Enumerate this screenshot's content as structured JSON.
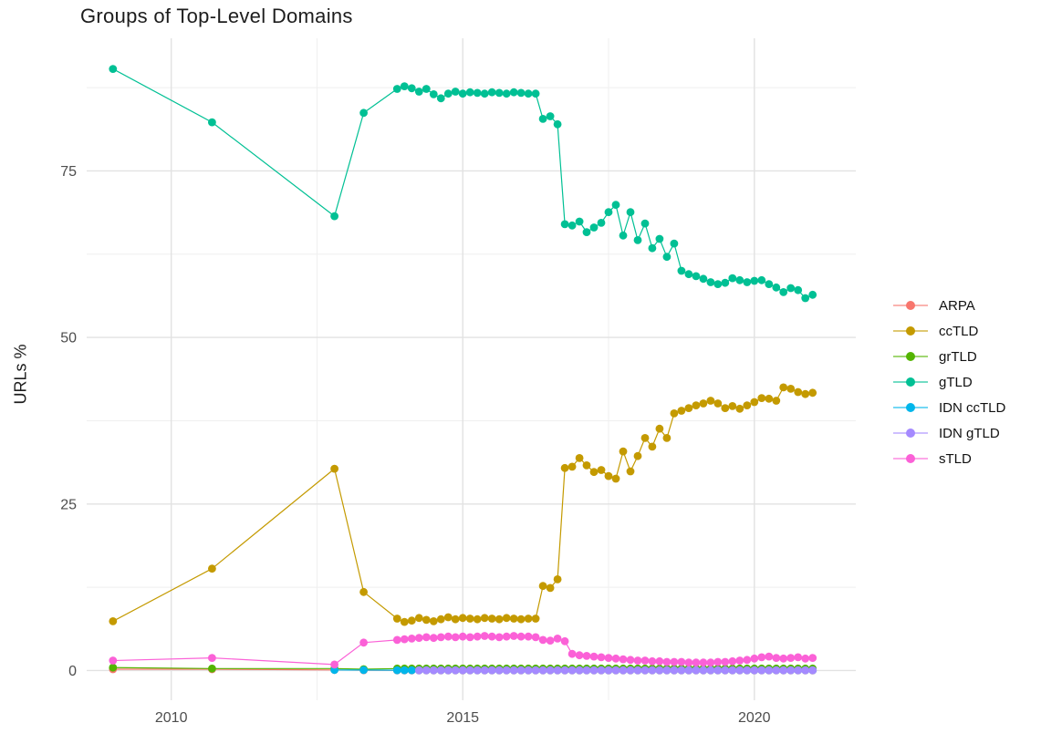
{
  "chart_data": {
    "type": "scatter",
    "title": "Groups of Top-Level Domains",
    "xlabel": "",
    "ylabel": "URLs %",
    "legend_position": "right",
    "grid": true,
    "background": "#ffffff",
    "grid_major_color": "#e2e2e2",
    "grid_minor_color": "#efefef",
    "tick_label_color": "#4d4d4d",
    "xticks": [
      2010,
      2015,
      2020
    ],
    "xtick_labels": [
      "2010",
      "2015",
      "2020"
    ],
    "yticks": [
      0,
      25,
      50,
      75
    ],
    "ytick_labels": [
      "0",
      "25",
      "50",
      "75"
    ],
    "x_minor": [
      2012.5,
      2017.5
    ],
    "y_minor": [
      12.5,
      37.5,
      62.5,
      87.5
    ],
    "xlim": [
      2008.55,
      2021.74
    ],
    "ylim": [
      -4.45,
      94.9
    ],
    "x": [
      2009,
      2010.7,
      2012.8,
      2013.3,
      2013.875,
      2014,
      2014.125,
      2014.25,
      2014.375,
      2014.5,
      2014.625,
      2014.75,
      2014.875,
      2015,
      2015.125,
      2015.25,
      2015.375,
      2015.5,
      2015.625,
      2015.75,
      2015.875,
      2016,
      2016.125,
      2016.25,
      2016.375,
      2016.5,
      2016.625,
      2016.75,
      2016.875,
      2017,
      2017.125,
      2017.25,
      2017.375,
      2017.5,
      2017.625,
      2017.75,
      2017.875,
      2018,
      2018.125,
      2018.25,
      2018.375,
      2018.5,
      2018.625,
      2018.75,
      2018.875,
      2019,
      2019.125,
      2019.25,
      2019.375,
      2019.5,
      2019.625,
      2019.75,
      2019.875,
      2020,
      2020.125,
      2020.25,
      2020.375,
      2020.5,
      2020.625,
      2020.75,
      2020.875,
      2021
    ],
    "series": [
      {
        "name": "ARPA",
        "color": "#F8766D",
        "values": [
          0.2,
          0.2,
          0.1,
          0.05,
          0.02,
          0.02,
          0.02,
          0.02,
          0.02,
          0.02,
          0.02,
          0.02,
          0.02,
          0.02,
          0.02,
          0.02,
          0.02,
          0.02,
          0.02,
          0.02,
          0.02,
          0.02,
          0.02,
          0.02,
          0.02,
          0.02,
          0.02,
          0.02,
          0.02,
          0.02,
          0.02,
          0.02,
          0.02,
          0.02,
          0.02,
          0.02,
          0.02,
          0.02,
          0.02,
          0.02,
          0.02,
          0.02,
          0.02,
          0.02,
          0.02,
          0.02,
          0.02,
          0.02,
          0.02,
          0.02,
          0.02,
          0.02,
          0.02,
          0.02,
          0.02,
          0.02,
          0.02,
          0.02,
          0.02,
          0.02,
          0.02,
          0.02
        ]
      },
      {
        "name": "ccTLD",
        "color": "#C49A00",
        "values": [
          7.4,
          15.3,
          30.3,
          11.8,
          7.8,
          7.3,
          7.5,
          7.9,
          7.6,
          7.4,
          7.7,
          8,
          7.7,
          7.9,
          7.8,
          7.7,
          7.9,
          7.8,
          7.7,
          7.9,
          7.8,
          7.7,
          7.8,
          7.8,
          12.7,
          12.4,
          13.7,
          30.4,
          30.6,
          31.9,
          30.8,
          29.8,
          30.1,
          29.2,
          28.8,
          32.9,
          29.9,
          32.2,
          34.9,
          33.6,
          36.3,
          34.9,
          38.6,
          39,
          39.4,
          39.8,
          40.1,
          40.5,
          40.1,
          39.4,
          39.7,
          39.3,
          39.8,
          40.3,
          40.9,
          40.8,
          40.5,
          42.5,
          42.3,
          41.8,
          41.5,
          41.7
        ]
      },
      {
        "name": "grTLD",
        "color": "#53B400",
        "values": [
          0.45,
          0.3,
          0.3,
          0.2,
          0.3,
          0.3,
          0.3,
          0.3,
          0.3,
          0.3,
          0.3,
          0.3,
          0.3,
          0.3,
          0.3,
          0.3,
          0.3,
          0.3,
          0.3,
          0.3,
          0.3,
          0.3,
          0.3,
          0.3,
          0.3,
          0.3,
          0.3,
          0.3,
          0.3,
          0.3,
          0.3,
          0.3,
          0.3,
          0.3,
          0.3,
          0.3,
          0.3,
          0.3,
          0.3,
          0.3,
          0.3,
          0.3,
          0.3,
          0.3,
          0.3,
          0.3,
          0.3,
          0.3,
          0.3,
          0.3,
          0.3,
          0.3,
          0.3,
          0.3,
          0.3,
          0.3,
          0.3,
          0.3,
          0.3,
          0.3,
          0.3,
          0.3
        ]
      },
      {
        "name": "gTLD",
        "color": "#00C094",
        "values": [
          90.3,
          82.3,
          68.2,
          83.7,
          87.3,
          87.7,
          87.4,
          86.9,
          87.3,
          86.5,
          85.9,
          86.6,
          86.9,
          86.6,
          86.8,
          86.7,
          86.6,
          86.8,
          86.7,
          86.6,
          86.8,
          86.7,
          86.6,
          86.6,
          82.8,
          83.2,
          82,
          67,
          66.8,
          67.4,
          65.8,
          66.5,
          67.2,
          68.8,
          69.9,
          65.3,
          68.8,
          64.6,
          67.1,
          63.4,
          64.8,
          62.1,
          64.1,
          60,
          59.5,
          59.2,
          58.8,
          58.3,
          58,
          58.2,
          58.9,
          58.6,
          58.3,
          58.5,
          58.6,
          58,
          57.5,
          56.8,
          57.4,
          57.1,
          55.9,
          56.4
        ]
      },
      {
        "name": "IDN ccTLD",
        "color": "#00B6EB",
        "values": [
          null,
          null,
          0.1,
          0.08,
          0.05,
          0.05,
          0.05,
          0.05,
          0.05,
          0.05,
          0.05,
          0.05,
          0.05,
          0.05,
          0.05,
          0.05,
          0.05,
          0.05,
          0.05,
          0.05,
          0.05,
          0.05,
          0.05,
          0.05,
          0.05,
          0.05,
          0.05,
          0.05,
          0.05,
          0.05,
          0.05,
          0.05,
          0.05,
          0.05,
          0.05,
          0.05,
          0.05,
          0.05,
          0.05,
          0.05,
          0.05,
          0.05,
          0.05,
          0.05,
          0.05,
          0.05,
          0.05,
          0.05,
          0.05,
          0.05,
          0.05,
          0.05,
          0.05,
          0.05,
          0.05,
          0.05,
          0.05,
          0.05,
          0.05,
          0.05,
          0.05,
          0.05
        ]
      },
      {
        "name": "IDN gTLD",
        "color": "#A58AFF",
        "values": [
          null,
          null,
          null,
          null,
          null,
          null,
          null,
          0.05,
          0.05,
          0.05,
          0.05,
          0.05,
          0.05,
          0.05,
          0.05,
          0.05,
          0.05,
          0.05,
          0.05,
          0.05,
          0.05,
          0.05,
          0.05,
          0.05,
          0.05,
          0.05,
          0.05,
          0.05,
          0.05,
          0.05,
          0.05,
          0.05,
          0.05,
          0.05,
          0.05,
          0.05,
          0.05,
          0.05,
          0.05,
          0.05,
          0.05,
          0.05,
          0.05,
          0.05,
          0.05,
          0.05,
          0.05,
          0.05,
          0.05,
          0.05,
          0.05,
          0.05,
          0.05,
          0.05,
          0.05,
          0.05,
          0.05,
          0.05,
          0.05,
          0.05,
          0.05,
          0.05
        ]
      },
      {
        "name": "sTLD",
        "color": "#FB61D7",
        "values": [
          1.5,
          1.9,
          0.9,
          4.2,
          4.6,
          4.7,
          4.8,
          4.9,
          5,
          4.9,
          5,
          5.1,
          5,
          5.1,
          5,
          5.1,
          5.2,
          5.1,
          5,
          5.1,
          5.2,
          5.1,
          5.1,
          5,
          4.6,
          4.5,
          4.8,
          4.4,
          2.5,
          2.3,
          2.2,
          2.1,
          2,
          1.9,
          1.8,
          1.7,
          1.6,
          1.5,
          1.5,
          1.4,
          1.4,
          1.3,
          1.3,
          1.3,
          1.2,
          1.2,
          1.2,
          1.2,
          1.3,
          1.3,
          1.4,
          1.5,
          1.6,
          1.8,
          2,
          2.1,
          1.9,
          1.8,
          1.9,
          2,
          1.8,
          1.9
        ]
      }
    ]
  }
}
